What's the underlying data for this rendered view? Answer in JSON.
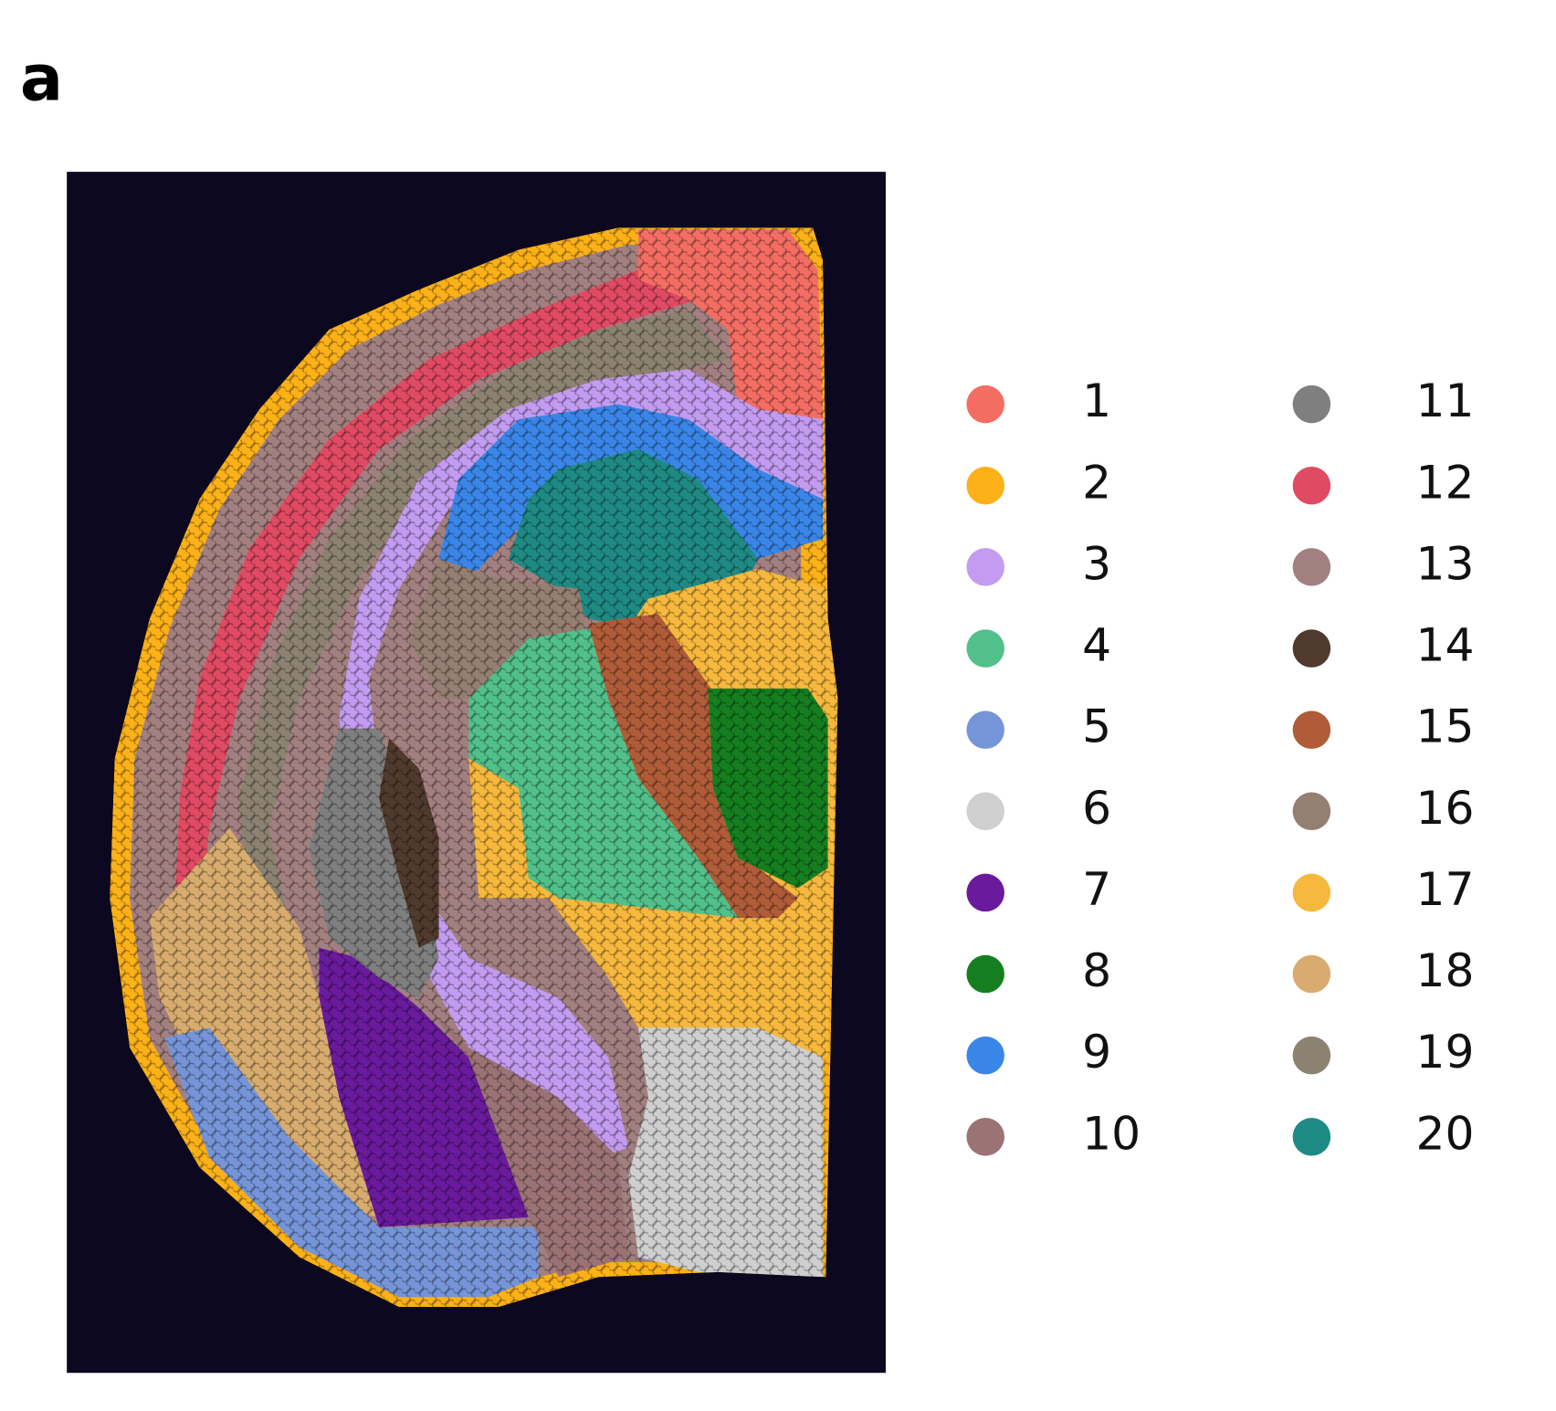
{
  "panel_label": "a",
  "legend": {
    "items": [
      {
        "label": "1",
        "color": "#f46d63"
      },
      {
        "label": "2",
        "color": "#fbb117"
      },
      {
        "label": "3",
        "color": "#c39bf0"
      },
      {
        "label": "4",
        "color": "#52c08a"
      },
      {
        "label": "5",
        "color": "#7595d8"
      },
      {
        "label": "6",
        "color": "#cfcfcf"
      },
      {
        "label": "7",
        "color": "#6a1a9c"
      },
      {
        "label": "8",
        "color": "#157f1f"
      },
      {
        "label": "9",
        "color": "#3a86e8"
      },
      {
        "label": "10",
        "color": "#9b7374"
      },
      {
        "label": "11",
        "color": "#7f7f7f"
      },
      {
        "label": "12",
        "color": "#e14a63"
      },
      {
        "label": "13",
        "color": "#a38080"
      },
      {
        "label": "14",
        "color": "#503a2d"
      },
      {
        "label": "15",
        "color": "#b05c38"
      },
      {
        "label": "16",
        "color": "#957e72"
      },
      {
        "label": "17",
        "color": "#f6b83d"
      },
      {
        "label": "18",
        "color": "#d8ac6e"
      },
      {
        "label": "19",
        "color": "#8c8271"
      },
      {
        "label": "20",
        "color": "#1f8a84"
      }
    ]
  }
}
